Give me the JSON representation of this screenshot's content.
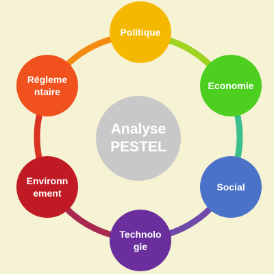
{
  "diagram": {
    "center": {
      "label": "Analyse\nPESTEL",
      "color": "#c8c8c8"
    },
    "nodes": [
      {
        "id": "politique",
        "label": "Politique",
        "color": "#f5b800",
        "link_color": "#f5b800"
      },
      {
        "id": "economie",
        "label": "Economie",
        "color": "#4ccf1e",
        "link_color": "#9fd322"
      },
      {
        "id": "social",
        "label": "Social",
        "color": "#4a72c9",
        "link_color": "#3bbf8e"
      },
      {
        "id": "technologie",
        "label": "Technolo\ngie",
        "color": "#6a2f9c",
        "link_color": "#6f4aa8"
      },
      {
        "id": "environnement",
        "label": "Environn\nement",
        "color": "#c01a24",
        "link_color": "#a72a4e"
      },
      {
        "id": "reglementaire",
        "label": "Régleme\nntaire",
        "color": "#f0511d",
        "link_color": "#da3322"
      }
    ],
    "closing_link_color": "#f58a10"
  }
}
